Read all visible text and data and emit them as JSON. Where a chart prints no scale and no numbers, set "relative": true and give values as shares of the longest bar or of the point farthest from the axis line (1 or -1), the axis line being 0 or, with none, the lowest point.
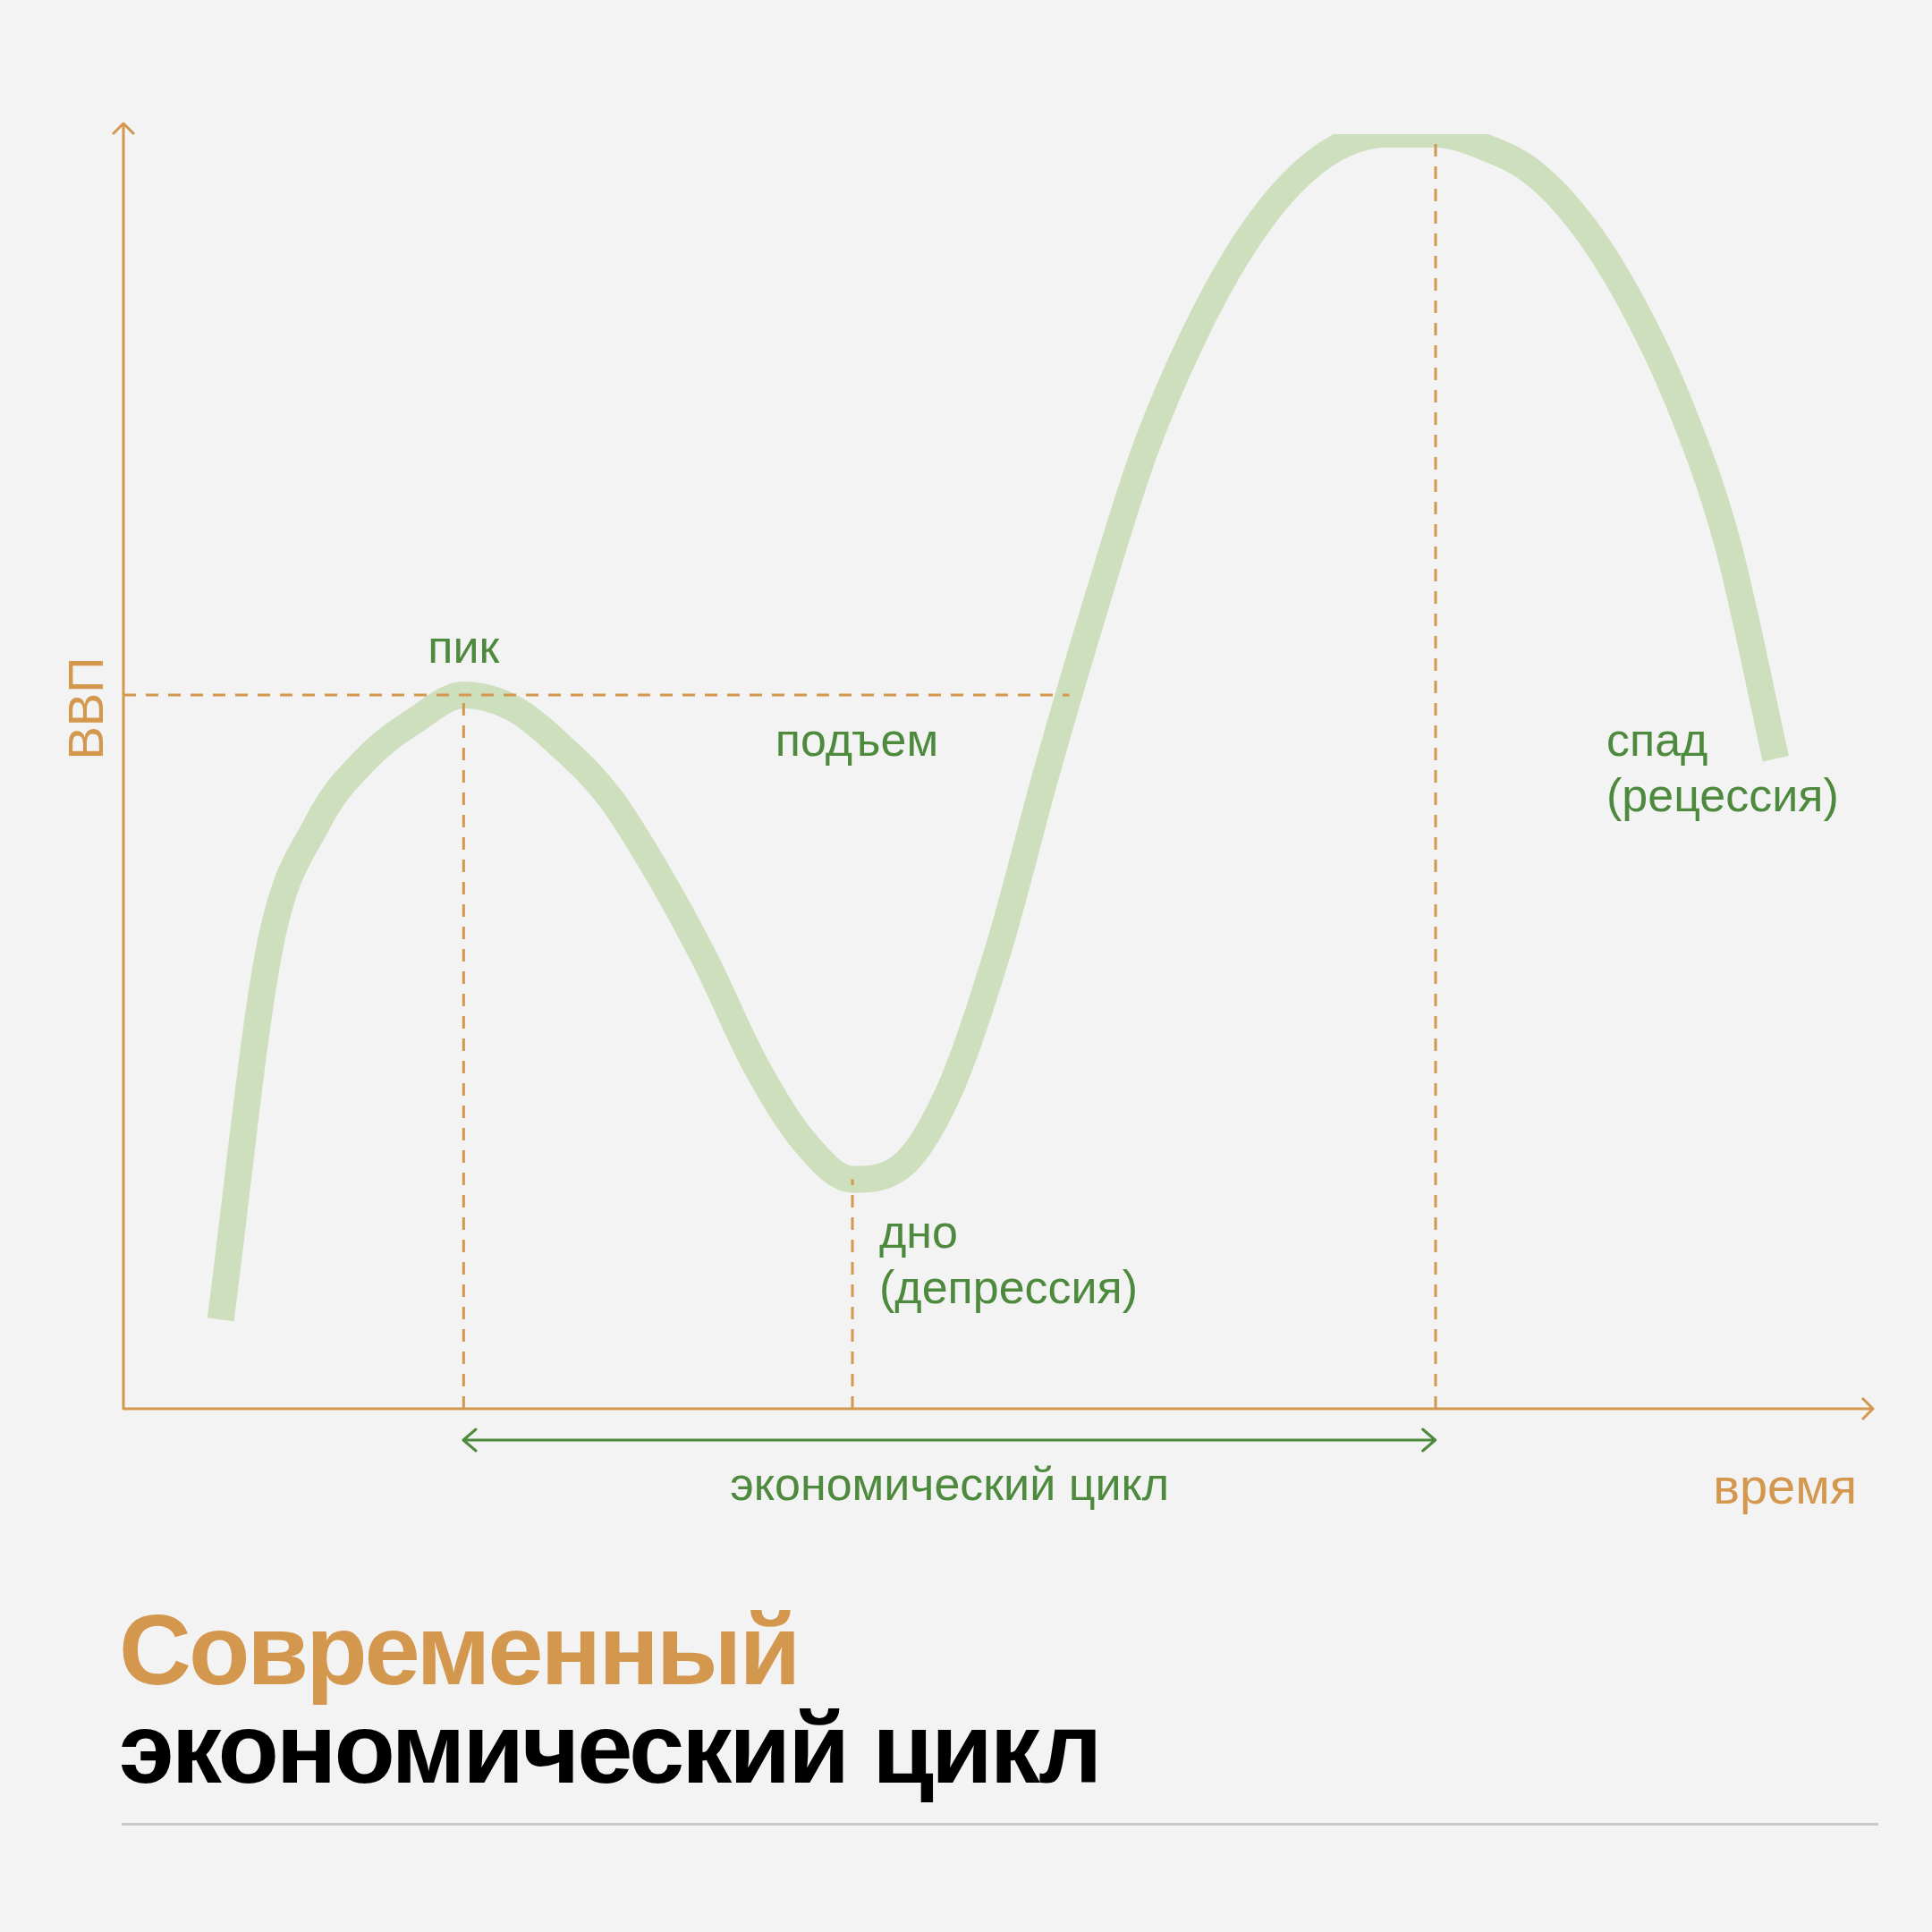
{
  "chart_data": {
    "type": "line",
    "title": "Современный",
    "subtitle": "экономический цикл",
    "xlabel": "время",
    "ylabel": "ВВП",
    "relative": true,
    "legend": false,
    "grid": false,
    "tick_labels": false,
    "marker": "none",
    "line_style": "solid",
    "categories": [
      null,
      null,
      null,
      null,
      null,
      null,
      null,
      null,
      null,
      null,
      null,
      null,
      null,
      null,
      null,
      null,
      null,
      null,
      null,
      null,
      null,
      null,
      null,
      null,
      null,
      null,
      null,
      null,
      null,
      null,
      null,
      null,
      null,
      null,
      null,
      null,
      null
    ],
    "series": [
      {
        "color": "#cddfbd",
        "values": [
          null,
          null,
          0.07,
          0.36,
          0.46,
          0.51,
          0.54,
          0.56,
          0.55,
          0.52,
          0.48,
          0.42,
          0.35,
          0.27,
          0.21,
          0.18,
          0.19,
          0.25,
          0.36,
          0.5,
          0.63,
          0.75,
          0.84,
          0.91,
          0.96,
          0.99,
          1,
          1,
          0.99,
          0.97,
          0.93,
          0.87,
          0.79,
          0.68,
          0.51,
          null,
          null
        ]
      }
    ],
    "ref_lines": [
      {
        "axis": "y",
        "value": 0.56,
        "color": "#d4974e",
        "line_style": "dashed"
      }
    ],
    "annotations": [
      "пик",
      "подъем",
      "дно (депрессия)",
      "спад (рецессия)",
      "экономический цикл"
    ]
  }
}
